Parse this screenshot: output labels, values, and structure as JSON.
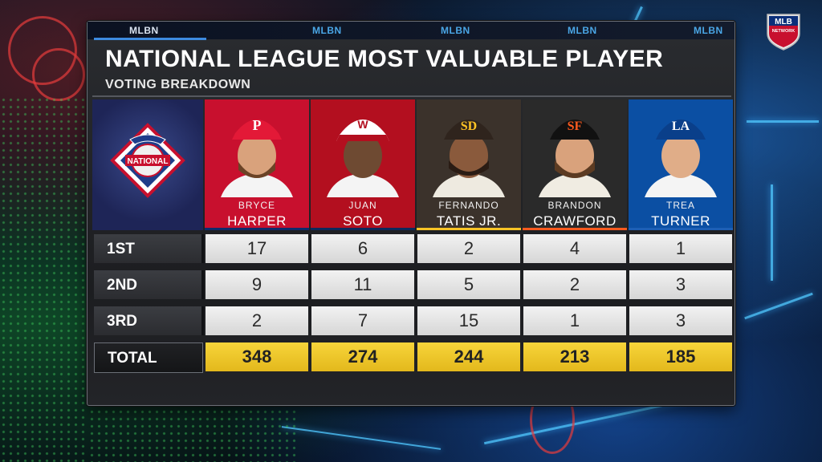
{
  "network": {
    "watermark": "MLBN",
    "logo_text": "MLB NETWORK"
  },
  "title": "NATIONAL LEAGUE MOST VALUABLE PLAYER",
  "subtitle": "VOTING BREAKDOWN",
  "league_logo": {
    "text": "NATIONAL",
    "icon": "national-league-logo"
  },
  "players": [
    {
      "first": "BRYCE",
      "last": "HARPER",
      "team_color": "#c8102e",
      "stripe": "#0e2c6b"
    },
    {
      "first": "JUAN",
      "last": "SOTO",
      "team_color": "#b30f1f",
      "stripe": "#0d2a5c"
    },
    {
      "first": "FERNANDO",
      "last": "TATIS JR.",
      "team_color": "#3b322b",
      "stripe": "#ffc425"
    },
    {
      "first": "BRANDON",
      "last": "CRAWFORD",
      "team_color": "#2a2a2a",
      "stripe": "#fd5a1e"
    },
    {
      "first": "TREA",
      "last": "TURNER",
      "team_color": "#0b4fa3",
      "stripe": "#1d5fb5"
    }
  ],
  "rows": [
    {
      "label": "1ST",
      "values": [
        "17",
        "6",
        "2",
        "4",
        "1"
      ]
    },
    {
      "label": "2ND",
      "values": [
        "9",
        "11",
        "5",
        "2",
        "3"
      ]
    },
    {
      "label": "3RD",
      "values": [
        "2",
        "7",
        "15",
        "1",
        "3"
      ]
    },
    {
      "label": "TOTAL",
      "values": [
        "348",
        "274",
        "244",
        "213",
        "185"
      ]
    }
  ]
}
